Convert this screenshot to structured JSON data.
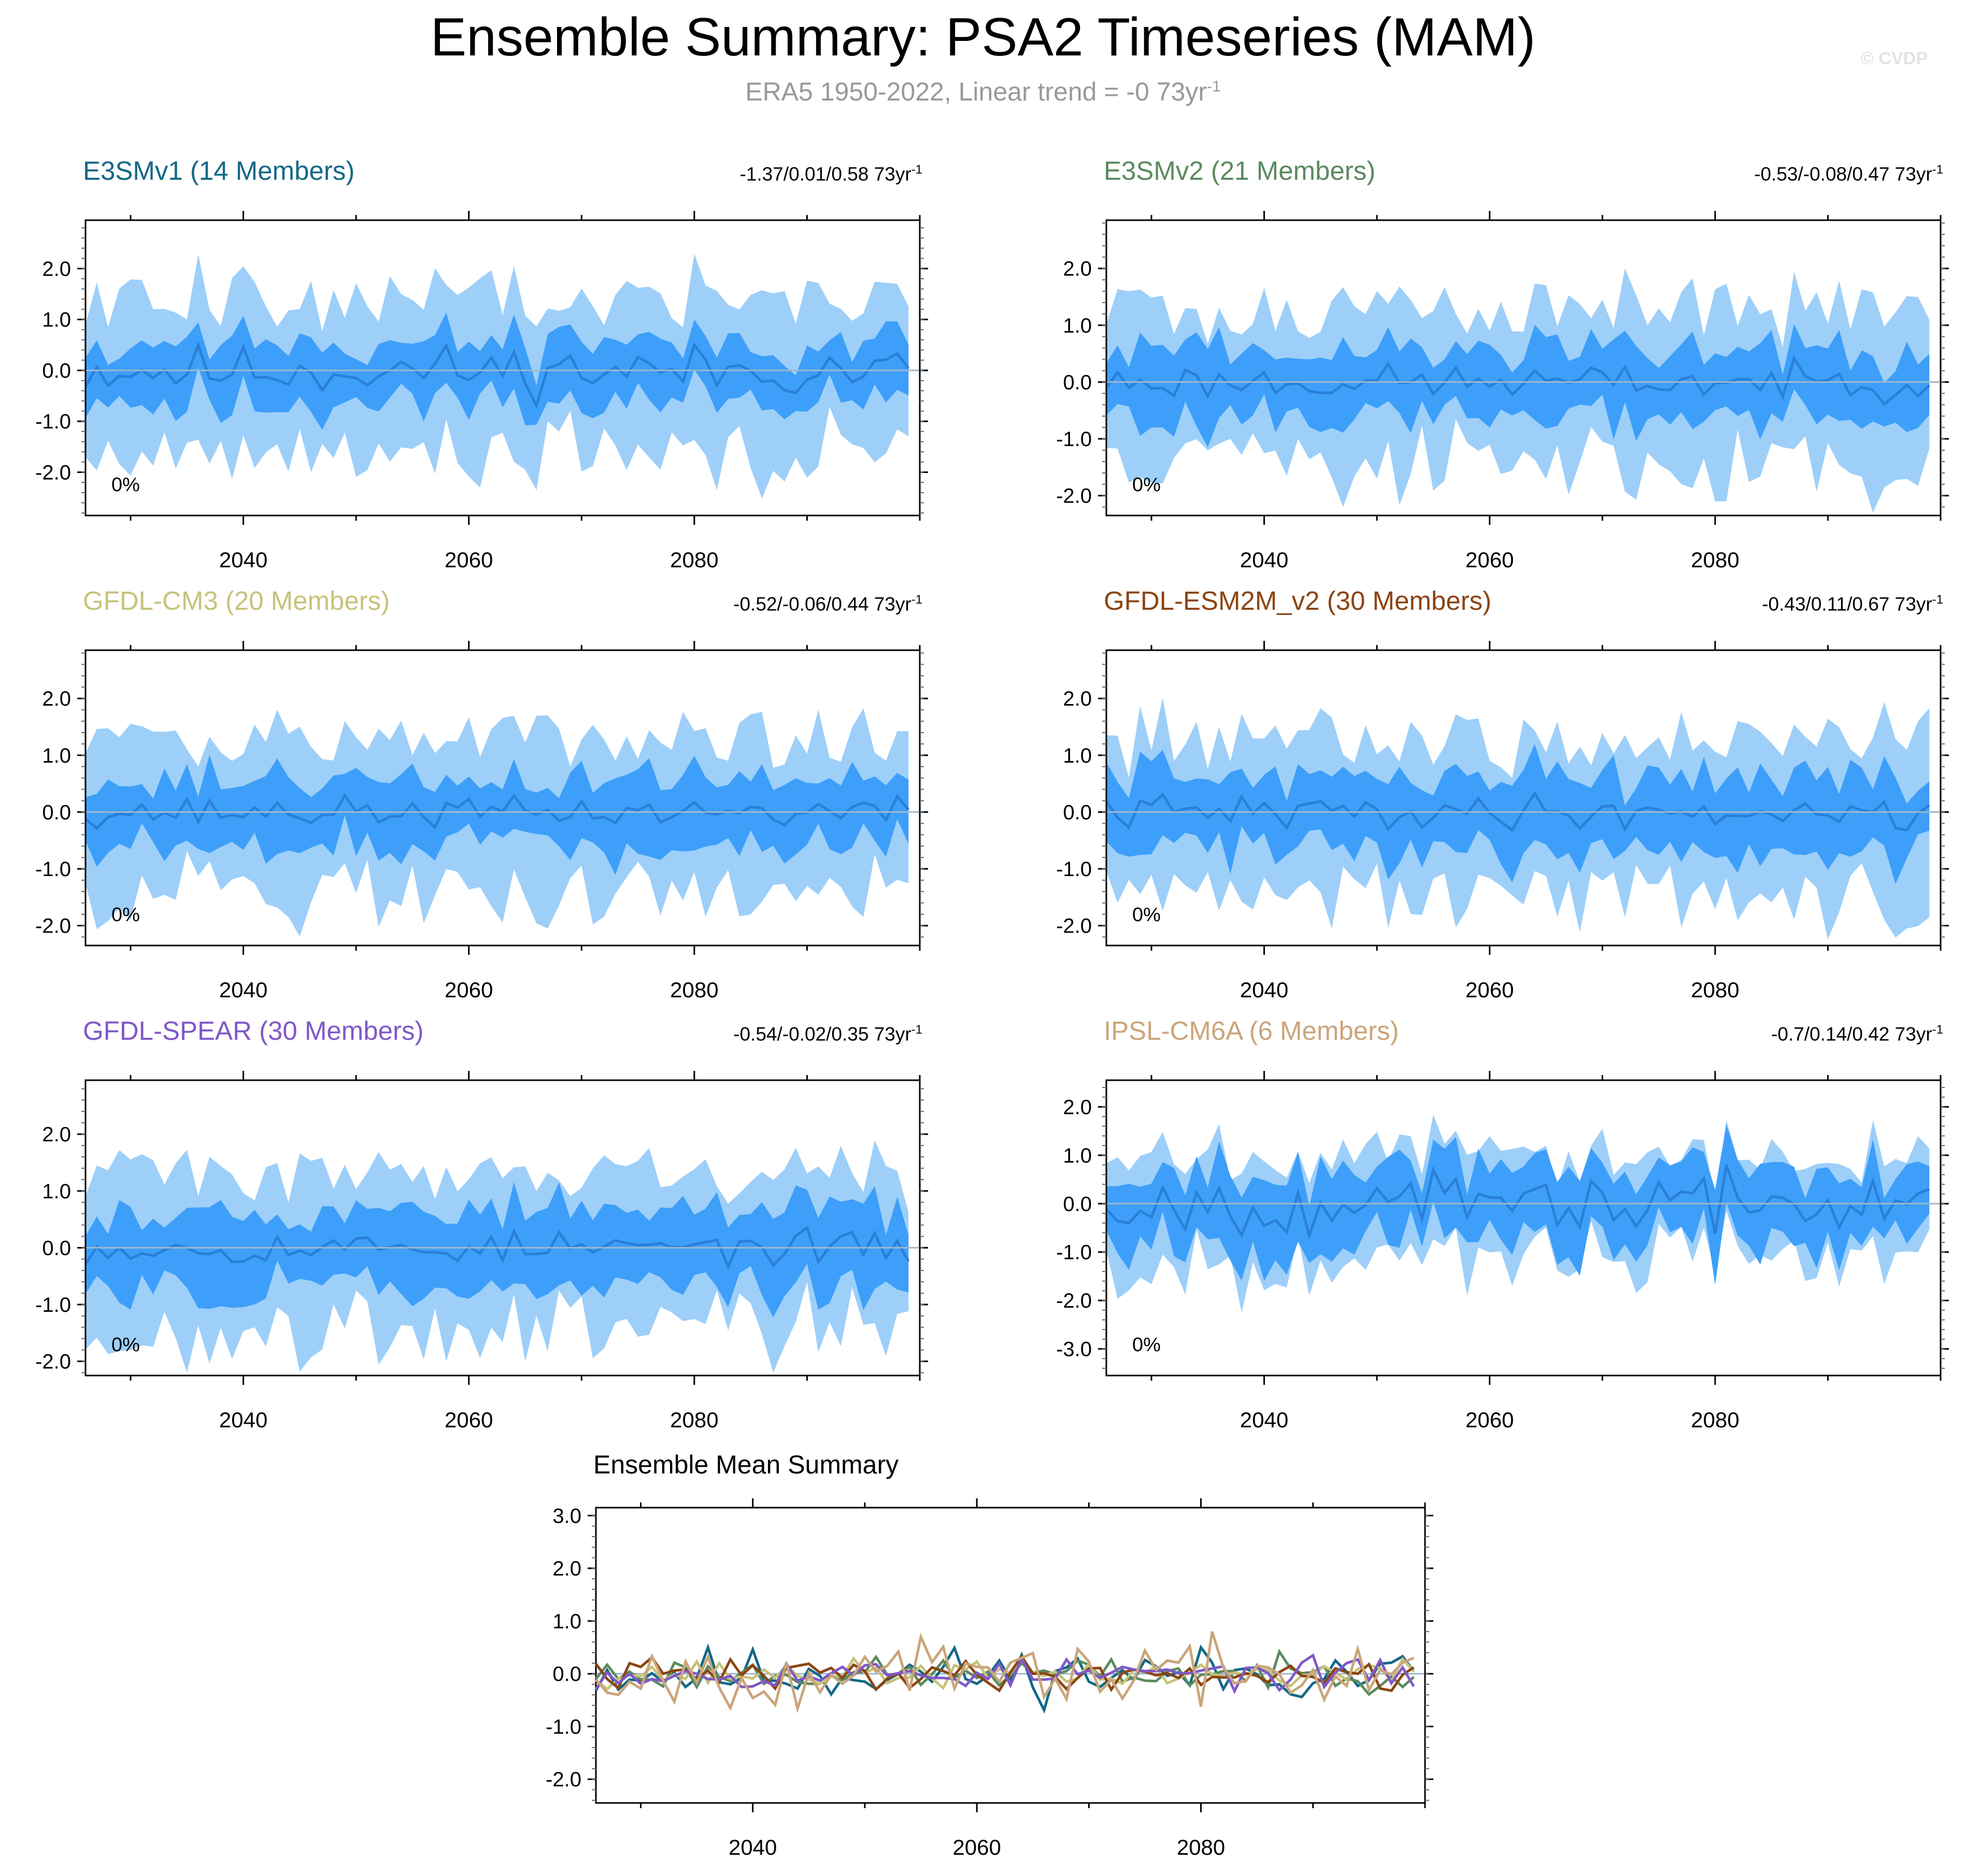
{
  "title": "Ensemble Summary: PSA2 Timeseries (MAM)",
  "subtitle": {
    "text": "ERA5 1950-2022, Linear trend = -0 73yr",
    "exponent": "-1"
  },
  "watermark": "© CVDP",
  "colors": {
    "band_outer": "#9dcff9",
    "band_inner": "#3d9ff9",
    "mean_line": "#2a7fd8",
    "axis": "#000000",
    "zero_line": "#9fb8cc"
  },
  "chart_data": [
    {
      "type": "area",
      "title": "E3SMv1 (14 Members)",
      "title_color": "#126886",
      "trend": "-1.37/0.01/0.58 73yr",
      "trend_exp": "-1",
      "percent_label": "0%",
      "x_start": 2026,
      "x_end": 2099,
      "xlim": [
        2026,
        2100
      ],
      "ylim": [
        -2.85,
        2.95
      ],
      "yticks": [
        {
          "v": 2.0,
          "label": "2.0"
        },
        {
          "v": 1.0,
          "label": "1.0"
        },
        {
          "v": 0.0,
          "label": "0.0"
        },
        {
          "v": -1.0,
          "label": "-1.0"
        },
        {
          "v": -2.0,
          "label": "-2.0"
        }
      ],
      "xticks": [
        {
          "v": 2040,
          "label": "2040"
        },
        {
          "v": 2060,
          "label": "2060"
        },
        {
          "v": 2080,
          "label": "2080"
        }
      ],
      "seed": 11,
      "spread_outer": 1.45,
      "spread_inner": 0.55,
      "mean_amp": 0.25
    },
    {
      "type": "area",
      "title": "E3SMv2 (21 Members)",
      "title_color": "#5b8a5f",
      "trend": "-0.53/-0.08/0.47 73yr",
      "trend_exp": "-1",
      "percent_label": "0%",
      "x_start": 2026,
      "x_end": 2099,
      "xlim": [
        2026,
        2100
      ],
      "ylim": [
        -2.35,
        2.85
      ],
      "yticks": [
        {
          "v": 2.0,
          "label": "2.0"
        },
        {
          "v": 1.0,
          "label": "1.0"
        },
        {
          "v": 0.0,
          "label": "0.0"
        },
        {
          "v": -1.0,
          "label": "-1.0"
        },
        {
          "v": -2.0,
          "label": "-2.0"
        }
      ],
      "xticks": [
        {
          "v": 2040,
          "label": "2040"
        },
        {
          "v": 2060,
          "label": "2060"
        },
        {
          "v": 2080,
          "label": "2080"
        }
      ],
      "seed": 23,
      "spread_outer": 1.3,
      "spread_inner": 0.6,
      "mean_amp": 0.15
    },
    {
      "type": "area",
      "title": "GFDL-CM3 (20 Members)",
      "title_color": "#c8c27a",
      "trend": "-0.52/-0.06/0.44 73yr",
      "trend_exp": "-1",
      "percent_label": "0%",
      "x_start": 2026,
      "x_end": 2099,
      "xlim": [
        2026,
        2100
      ],
      "ylim": [
        -2.35,
        2.85
      ],
      "yticks": [
        {
          "v": 2.0,
          "label": "2.0"
        },
        {
          "v": 1.0,
          "label": "1.0"
        },
        {
          "v": 0.0,
          "label": "0.0"
        },
        {
          "v": -1.0,
          "label": "-1.0"
        },
        {
          "v": -2.0,
          "label": "-2.0"
        }
      ],
      "xticks": [
        {
          "v": 2040,
          "label": "2040"
        },
        {
          "v": 2060,
          "label": "2060"
        },
        {
          "v": 2080,
          "label": "2080"
        }
      ],
      "seed": 37,
      "spread_outer": 1.3,
      "spread_inner": 0.6,
      "mean_amp": 0.13
    },
    {
      "type": "area",
      "title": "GFDL-ESM2M_v2 (30 Members)",
      "title_color": "#8b4513",
      "trend": "-0.43/0.11/0.67 73yr",
      "trend_exp": "-1",
      "percent_label": "0%",
      "x_start": 2026,
      "x_end": 2099,
      "xlim": [
        2026,
        2100
      ],
      "ylim": [
        -2.35,
        2.85
      ],
      "yticks": [
        {
          "v": 2.0,
          "label": "2.0"
        },
        {
          "v": 1.0,
          "label": "1.0"
        },
        {
          "v": 0.0,
          "label": "0.0"
        },
        {
          "v": -1.0,
          "label": "-1.0"
        },
        {
          "v": -2.0,
          "label": "-2.0"
        }
      ],
      "xticks": [
        {
          "v": 2040,
          "label": "2040"
        },
        {
          "v": 2060,
          "label": "2060"
        },
        {
          "v": 2080,
          "label": "2080"
        }
      ],
      "seed": 41,
      "spread_outer": 1.3,
      "spread_inner": 0.65,
      "mean_amp": 0.15
    },
    {
      "type": "area",
      "title": "GFDL-SPEAR (30 Members)",
      "title_color": "#8058c8",
      "trend": "-0.54/-0.02/0.35 73yr",
      "trend_exp": "-1",
      "percent_label": "0%",
      "x_start": 2026,
      "x_end": 2099,
      "xlim": [
        2026,
        2100
      ],
      "ylim": [
        -2.25,
        2.95
      ],
      "yticks": [
        {
          "v": 2.0,
          "label": "2.0"
        },
        {
          "v": 1.0,
          "label": "1.0"
        },
        {
          "v": 0.0,
          "label": "0.0"
        },
        {
          "v": -1.0,
          "label": "-1.0"
        },
        {
          "v": -2.0,
          "label": "-2.0"
        }
      ],
      "xticks": [
        {
          "v": 2040,
          "label": "2040"
        },
        {
          "v": 2060,
          "label": "2060"
        },
        {
          "v": 2080,
          "label": "2080"
        }
      ],
      "seed": 53,
      "spread_outer": 1.3,
      "spread_inner": 0.65,
      "mean_amp": 0.14
    },
    {
      "type": "area",
      "title": "IPSL-CM6A (6 Members)",
      "title_color": "#caa57a",
      "trend": "-0.7/0.14/0.42 73yr",
      "trend_exp": "-1",
      "percent_label": "0%",
      "x_start": 2026,
      "x_end": 2099,
      "xlim": [
        2026,
        2100
      ],
      "ylim": [
        -3.55,
        2.55
      ],
      "yticks": [
        {
          "v": 2.0,
          "label": "2.0"
        },
        {
          "v": 1.0,
          "label": "1.0"
        },
        {
          "v": 0.0,
          "label": "0.0"
        },
        {
          "v": -1.0,
          "label": "-1.0"
        },
        {
          "v": -2.0,
          "label": "-2.0"
        },
        {
          "v": -3.0,
          "label": "-3.0"
        }
      ],
      "xticks": [
        {
          "v": 2040,
          "label": "2040"
        },
        {
          "v": 2060,
          "label": "2060"
        },
        {
          "v": 2080,
          "label": "2080"
        }
      ],
      "seed": 67,
      "spread_outer": 1.0,
      "spread_inner": 0.7,
      "mean_amp": 0.3
    },
    {
      "type": "line",
      "title": "Ensemble Mean Summary",
      "x_start": 2026,
      "x_end": 2099,
      "xlim": [
        2026,
        2100
      ],
      "ylim": [
        -2.45,
        3.15
      ],
      "yticks": [
        {
          "v": 3.0,
          "label": "3.0"
        },
        {
          "v": 2.0,
          "label": "2.0"
        },
        {
          "v": 1.0,
          "label": "1.0"
        },
        {
          "v": 0.0,
          "label": "0.0"
        },
        {
          "v": -1.0,
          "label": "-1.0"
        },
        {
          "v": -2.0,
          "label": "-2.0"
        }
      ],
      "xticks": [
        {
          "v": 2040,
          "label": "2040"
        },
        {
          "v": 2060,
          "label": "2060"
        },
        {
          "v": 2080,
          "label": "2080"
        }
      ],
      "series": [
        {
          "name": "E3SMv1",
          "color": "#126886",
          "seed": 11,
          "amp": 0.25
        },
        {
          "name": "E3SMv2",
          "color": "#5b8a5f",
          "seed": 23,
          "amp": 0.15
        },
        {
          "name": "GFDL-CM3",
          "color": "#c8c27a",
          "seed": 37,
          "amp": 0.13
        },
        {
          "name": "GFDL-ESM2M_v2",
          "color": "#8b4513",
          "seed": 41,
          "amp": 0.15
        },
        {
          "name": "GFDL-SPEAR",
          "color": "#8058c8",
          "seed": 53,
          "amp": 0.14
        },
        {
          "name": "IPSL-CM6A",
          "color": "#caa57a",
          "seed": 67,
          "amp": 0.3
        }
      ]
    }
  ]
}
